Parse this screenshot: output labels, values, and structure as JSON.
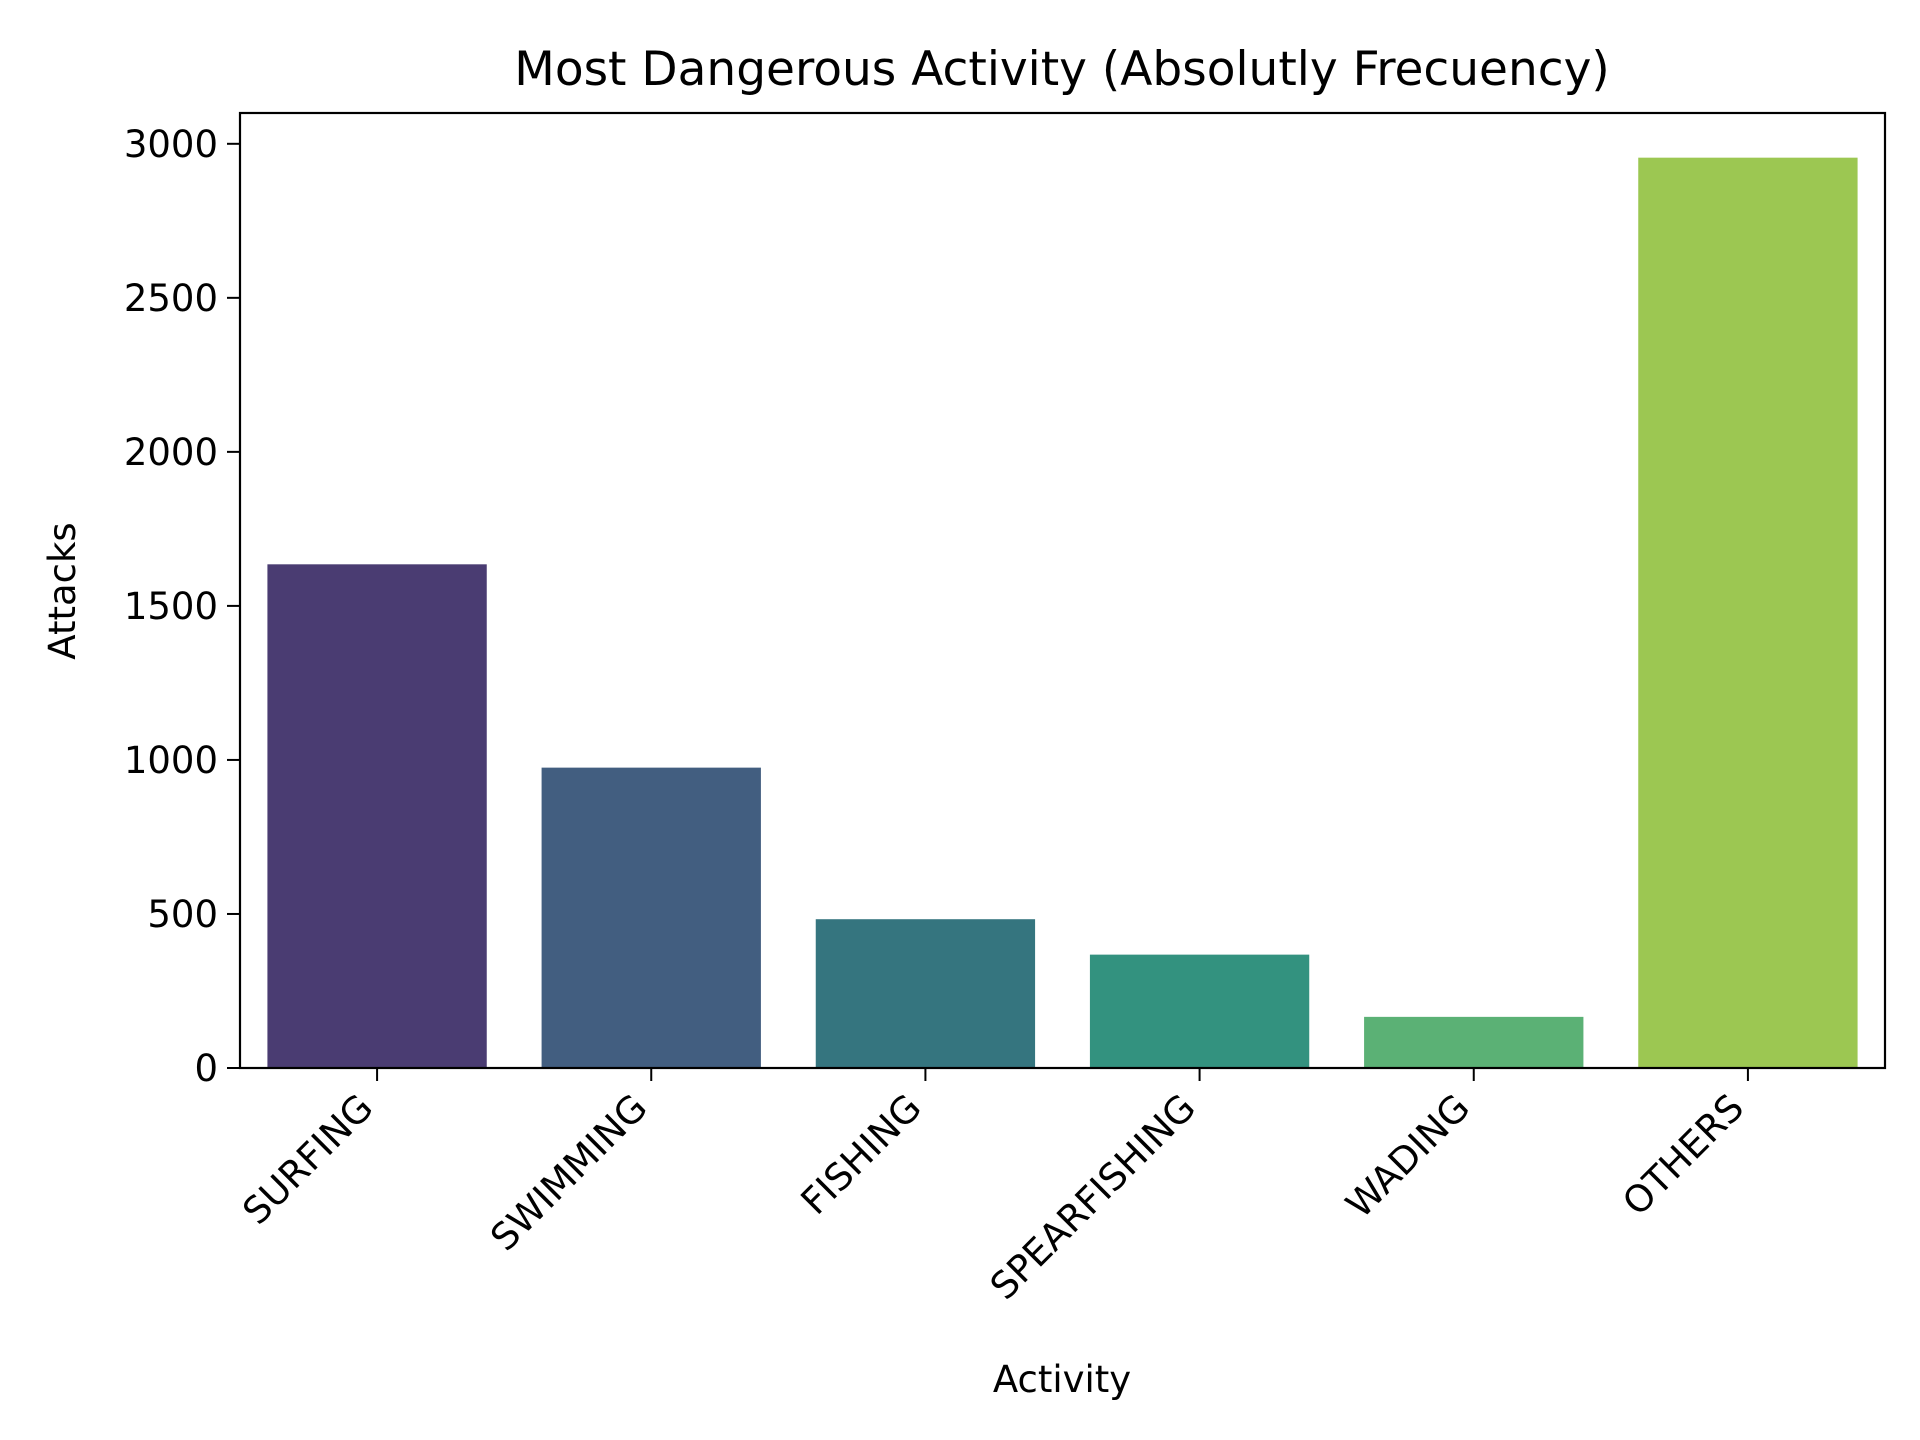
{
  "chart_data": {
    "type": "bar",
    "title": "Most Dangerous Activity (Absolutly Frecuency)",
    "xlabel": "Activity",
    "ylabel": "Attacks",
    "categories": [
      "SURFING",
      "SWIMMING",
      "FISHING",
      "SPEARFISHING",
      "WADING",
      "OTHERS"
    ],
    "values": [
      1635,
      975,
      483,
      368,
      166,
      2955
    ],
    "colors": [
      "#4a3c72",
      "#425e80",
      "#35757f",
      "#33927f",
      "#5bb175",
      "#9cc752"
    ],
    "yticks": [
      0,
      500,
      1000,
      1500,
      2000,
      2500,
      3000
    ],
    "ylim": [
      0,
      3100
    ],
    "grid": false,
    "legend": "none"
  }
}
